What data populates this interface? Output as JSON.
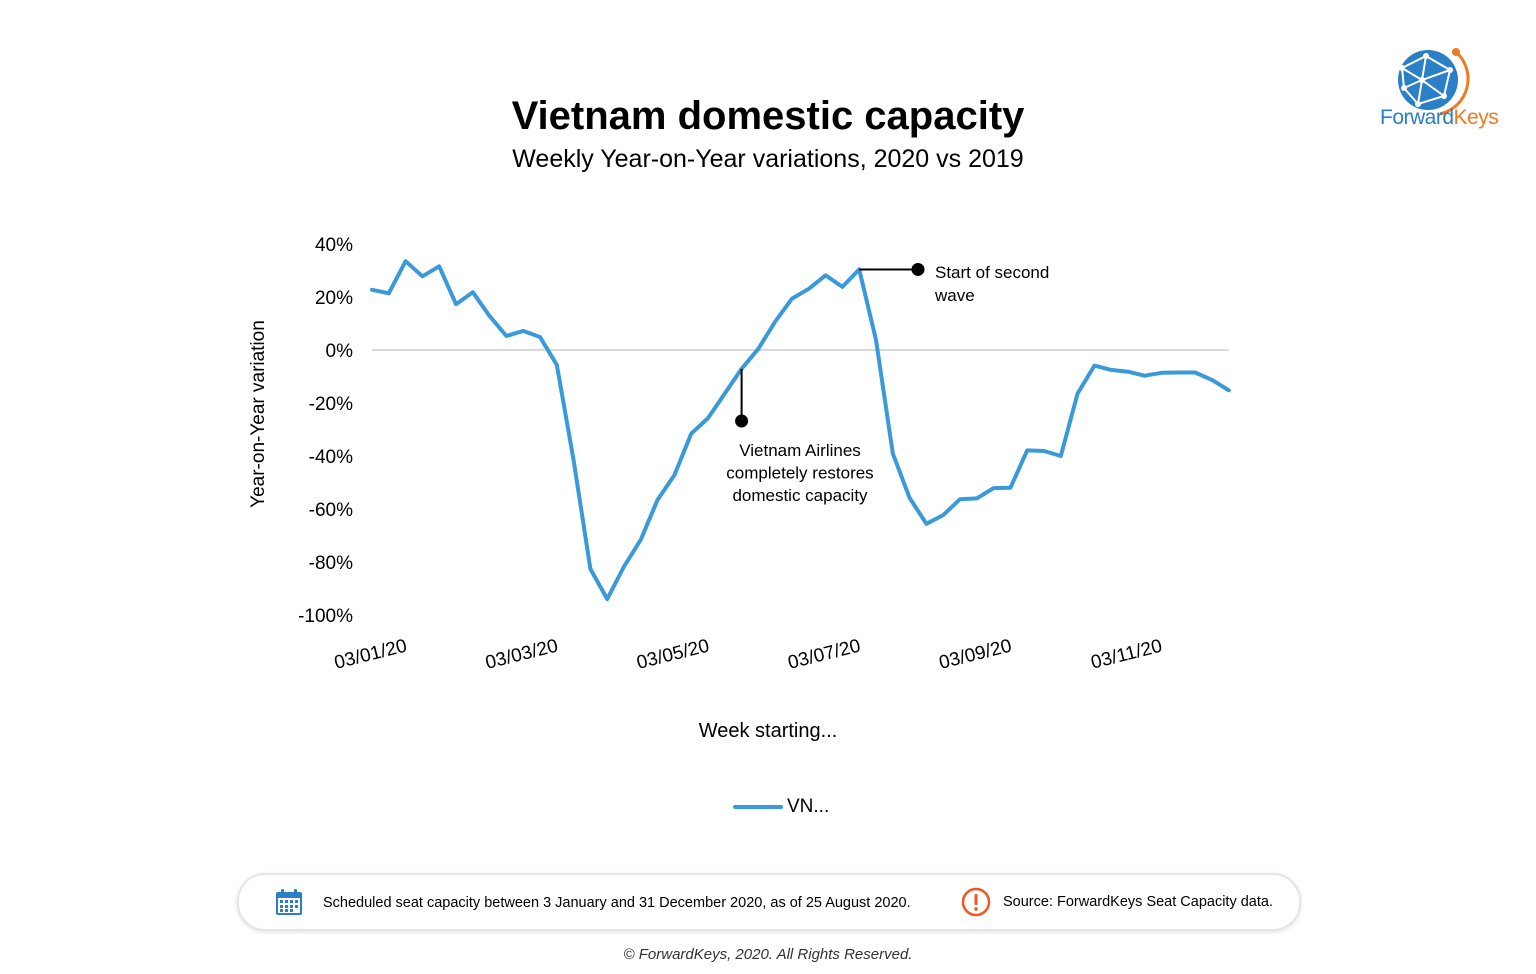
{
  "header": {
    "title": "Vietnam domestic capacity",
    "subtitle": "Weekly Year-on-Year variations, 2020 vs 2019"
  },
  "logo": {
    "brand_part1": "Forward",
    "brand_part2": "Keys",
    "icon": "globe-icon",
    "colors": {
      "blue": "#2a7fc6",
      "orange": "#ee7b22"
    }
  },
  "chart_data": {
    "type": "line",
    "title": "Vietnam domestic capacity",
    "subtitle": "Weekly Year-on-Year variations, 2020 vs 2019",
    "xlabel": "Week starting...",
    "ylabel": "Year-on-Year variation",
    "ylim": [
      -100,
      40
    ],
    "y_ticks": [
      40,
      20,
      0,
      -20,
      -40,
      -60,
      -80,
      -100
    ],
    "y_tick_labels": [
      "40%",
      "20%",
      "0%",
      "-20%",
      "-40%",
      "-60%",
      "-80%",
      "-100%"
    ],
    "x_tick_labels": [
      "03/01/20",
      "03/03/20",
      "03/05/20",
      "03/07/20",
      "03/09/20",
      "03/11/20"
    ],
    "x_tick_weeks": [
      0,
      9,
      18,
      27,
      36,
      45
    ],
    "grid": false,
    "zero_line": true,
    "legend_position": "bottom",
    "series": [
      {
        "name": "VN...",
        "color": "#3a9ad9",
        "values": [
          22.7,
          21.4,
          33.5,
          27.8,
          31.6,
          17.3,
          21.8,
          12.8,
          5.3,
          7.2,
          4.9,
          -5.6,
          -41.6,
          -82.6,
          -94.0,
          -81.7,
          -71.6,
          -56.5,
          -47.2,
          -31.6,
          -25.7,
          -16.4,
          -7.1,
          0.5,
          10.7,
          19.4,
          23.1,
          28.2,
          23.8,
          30.4,
          3.8,
          -39.0,
          -55.8,
          -65.6,
          -62.3,
          -56.3,
          -56.0,
          -52.1,
          -52.0,
          -37.9,
          -38.1,
          -40.0,
          -16.4,
          -5.9,
          -7.5,
          -8.2,
          -9.7,
          -8.6,
          -8.5,
          -8.5,
          -11.3,
          -15.2
        ]
      }
    ],
    "annotations": [
      {
        "text_lines": [
          "Start of second",
          "wave"
        ],
        "week": 29,
        "value": 30.4
      },
      {
        "text_lines": [
          "Vietnam Airlines",
          "completely restores",
          "domestic capacity"
        ],
        "week": 22,
        "value": -7.1
      }
    ]
  },
  "footer": {
    "note": "Scheduled seat capacity between 3 January and 31 December 2020, as of 25 August 2020.",
    "note_icon": "calendar-icon",
    "source": "Source: ForwardKeys Seat Capacity data.",
    "source_icon": "exclamation-icon",
    "copyright": "© ForwardKeys, 2020. All Rights Reserved."
  }
}
